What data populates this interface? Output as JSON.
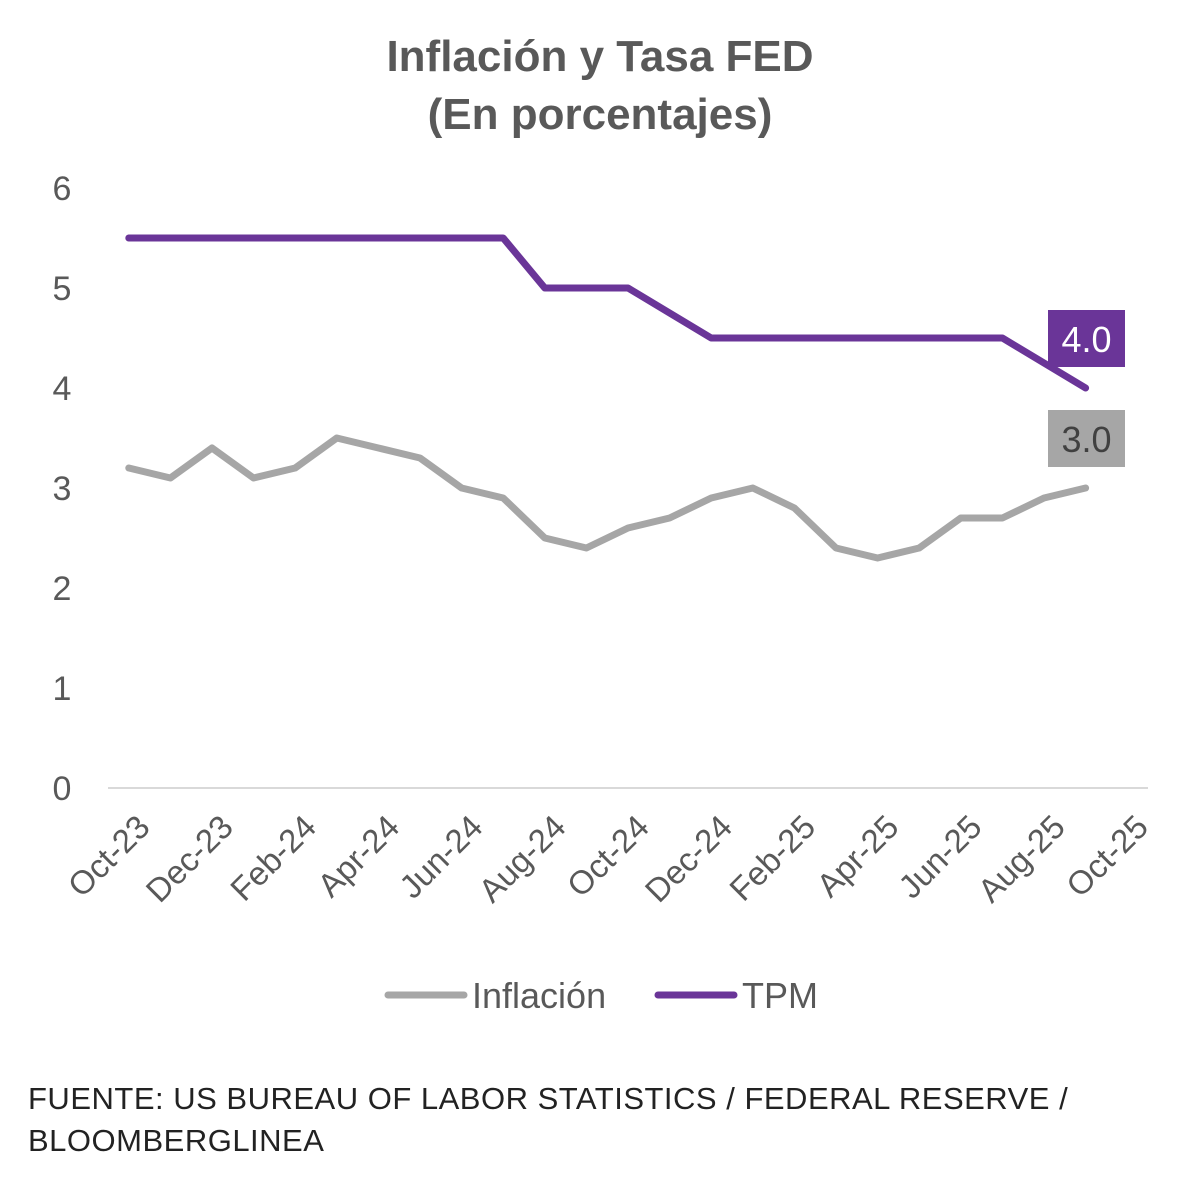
{
  "chart_data": {
    "type": "line",
    "title": "Inflación y Tasa FED",
    "subtitle": "(En porcentajes)",
    "xlabel": "",
    "ylabel": "",
    "ylim": [
      0,
      6
    ],
    "yticks": [
      "0",
      "1",
      "2",
      "3",
      "4",
      "5",
      "6"
    ],
    "grid": false,
    "legend_position": "bottom",
    "categories": [
      "Oct-23",
      "Nov-23",
      "Dec-23",
      "Jan-24",
      "Feb-24",
      "Mar-24",
      "Apr-24",
      "May-24",
      "Jun-24",
      "Jul-24",
      "Aug-24",
      "Sep-24",
      "Oct-24",
      "Nov-24",
      "Dec-24",
      "Jan-25",
      "Feb-25",
      "Mar-25",
      "Apr-25",
      "May-25",
      "Jun-25",
      "Jul-25",
      "Aug-25",
      "Sep-25",
      "Oct-25"
    ],
    "tick_labels": [
      "Oct-23",
      "Dec-23",
      "Feb-24",
      "Apr-24",
      "Jun-24",
      "Aug-24",
      "Oct-24",
      "Dec-24",
      "Feb-25",
      "Apr-25",
      "Jun-25",
      "Aug-25",
      "Oct-25"
    ],
    "series": [
      {
        "name": "Inflación",
        "color": "#a6a6a6",
        "values": [
          3.2,
          3.1,
          3.4,
          3.1,
          3.2,
          3.5,
          3.4,
          3.3,
          3.0,
          2.9,
          2.5,
          2.4,
          2.6,
          2.7,
          2.9,
          3.0,
          2.8,
          2.4,
          2.3,
          2.4,
          2.7,
          2.7,
          2.9,
          3.0,
          null
        ],
        "end_label": "3.0"
      },
      {
        "name": "TPM",
        "color": "#6a3598",
        "values": [
          5.5,
          5.5,
          5.5,
          5.5,
          5.5,
          5.5,
          5.5,
          5.5,
          5.5,
          5.5,
          5.0,
          5.0,
          5.0,
          4.75,
          4.5,
          4.5,
          4.5,
          4.5,
          4.5,
          4.5,
          4.5,
          4.5,
          4.25,
          4.0,
          null
        ],
        "end_label": "4.0"
      }
    ]
  },
  "source": {
    "line1": "FUENTE: US BUREAU OF LABOR STATISTICS / FEDERAL RESERVE /",
    "line2": "BLOOMBERGLINEA"
  }
}
